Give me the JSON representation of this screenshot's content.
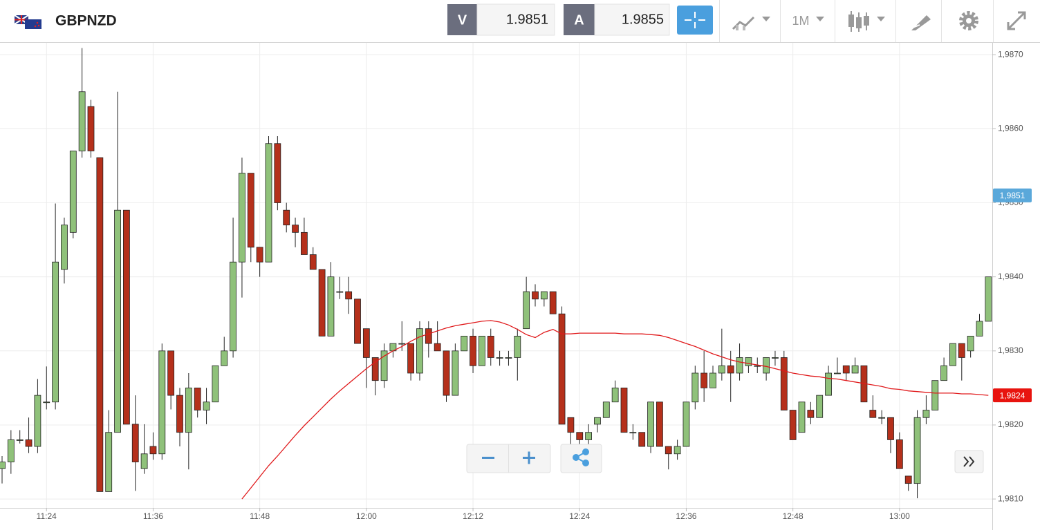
{
  "toolbar": {
    "symbol": "GBPNZD",
    "bid_label": "V",
    "bid": 1.9851,
    "ask_label": "A",
    "ask": 1.9855,
    "timeframe": "1M"
  },
  "chart_data": {
    "type": "candlestick",
    "categories": [
      null,
      null,
      null,
      null,
      null,
      "11:24",
      null,
      null,
      null,
      null,
      null,
      null,
      null,
      null,
      null,
      null,
      null,
      "11:36",
      null,
      null,
      null,
      null,
      null,
      null,
      null,
      null,
      null,
      null,
      null,
      "11:48",
      null,
      null,
      null,
      null,
      null,
      null,
      null,
      null,
      null,
      null,
      null,
      "12:00",
      null,
      null,
      null,
      null,
      null,
      null,
      null,
      null,
      null,
      null,
      null,
      "12:12",
      null,
      null,
      null,
      null,
      null,
      null,
      null,
      null,
      null,
      null,
      null,
      "12:24",
      null,
      null,
      null,
      null,
      null,
      null,
      null,
      null,
      null,
      null,
      null,
      "12:36",
      null,
      null,
      null,
      null,
      null,
      null,
      null,
      null,
      null,
      null,
      null,
      "12:48",
      null,
      null,
      null,
      null,
      null,
      null,
      null,
      null,
      null,
      null,
      null,
      "13:00",
      null,
      null,
      null,
      null,
      null,
      null,
      null,
      null,
      null,
      null
    ],
    "open": [
      1.98141,
      1.9815,
      1.98179,
      1.9818,
      1.98171,
      1.98231,
      1.98231,
      1.9841,
      1.9846,
      1.9857,
      1.9863,
      1.98561,
      1.9811,
      1.9819,
      1.9849,
      1.98201,
      1.98141,
      1.98171,
      1.98161,
      1.983,
      1.9824,
      1.9819,
      1.9825,
      1.9822,
      1.98231,
      1.9828,
      1.983,
      1.9842,
      1.9854,
      1.9844,
      1.9842,
      1.9858,
      1.9849,
      1.9847,
      1.9846,
      1.9843,
      1.9841,
      1.9832,
      1.9838,
      1.9838,
      1.9837,
      1.9833,
      1.98291,
      1.9826,
      1.983,
      1.9831,
      1.9831,
      1.9827,
      1.9833,
      1.9831,
      1.983,
      1.9824,
      1.983,
      1.9832,
      1.9828,
      1.9832,
      1.98291,
      1.98291,
      1.98291,
      1.9833,
      1.9838,
      1.9837,
      1.9838,
      1.9835,
      1.9821,
      1.9819,
      1.9818,
      1.98201,
      1.9821,
      1.98231,
      1.9825,
      1.9819,
      1.9819,
      1.98171,
      1.98231,
      1.98171,
      1.98161,
      1.98171,
      1.98231,
      1.9827,
      1.9825,
      1.9827,
      1.9828,
      1.9827,
      1.9828,
      1.9828,
      1.9827,
      1.98291,
      1.98291,
      1.9822,
      1.9819,
      1.9822,
      1.9821,
      1.9824,
      1.9827,
      1.9828,
      1.9827,
      1.9828,
      1.9822,
      1.9821,
      1.9821,
      1.9818,
      1.98131,
      1.98121,
      1.9821,
      1.9822,
      1.9826,
      1.9828,
      1.9831,
      1.983,
      1.9832,
      1.9834
    ],
    "close": [
      1.9815,
      1.9818,
      1.9818,
      1.98171,
      1.9824,
      1.98231,
      1.9842,
      1.9847,
      1.9857,
      1.9865,
      1.9857,
      1.9811,
      1.9819,
      1.9849,
      1.98201,
      1.9815,
      1.98161,
      1.98161,
      1.983,
      1.9824,
      1.9819,
      1.9825,
      1.9822,
      1.98231,
      1.9828,
      1.983,
      1.9842,
      1.9854,
      1.9844,
      1.9842,
      1.9858,
      1.985,
      1.9847,
      1.9846,
      1.9843,
      1.9841,
      1.9832,
      1.984,
      1.9838,
      1.9837,
      1.9831,
      1.98291,
      1.9826,
      1.983,
      1.9831,
      1.9831,
      1.9827,
      1.9833,
      1.9831,
      1.983,
      1.9824,
      1.983,
      1.9832,
      1.9828,
      1.9832,
      1.98291,
      1.98291,
      1.98291,
      1.9832,
      1.9838,
      1.9837,
      1.9838,
      1.9835,
      1.98201,
      1.9819,
      1.9818,
      1.9819,
      1.9821,
      1.98231,
      1.9825,
      1.9819,
      1.9819,
      1.98171,
      1.98231,
      1.98171,
      1.98161,
      1.98171,
      1.98231,
      1.9827,
      1.9825,
      1.9827,
      1.9828,
      1.9827,
      1.98291,
      1.98291,
      1.9828,
      1.98291,
      1.98291,
      1.9822,
      1.9818,
      1.98231,
      1.9821,
      1.9824,
      1.9827,
      1.9827,
      1.9827,
      1.9828,
      1.98231,
      1.9821,
      1.9821,
      1.9818,
      1.98141,
      1.98121,
      1.9821,
      1.9822,
      1.9826,
      1.9828,
      1.9831,
      1.98291,
      1.9832,
      1.9834,
      1.984
    ],
    "high": [
      1.98158,
      1.98193,
      1.98193,
      1.9821,
      1.98262,
      1.98279,
      1.98499,
      1.9848,
      1.9857,
      1.98709,
      1.98639,
      1.98561,
      1.9822,
      1.9865,
      1.9849,
      1.9824,
      1.98201,
      1.9819,
      1.9831,
      1.983,
      1.9825,
      1.9827,
      1.9825,
      1.9825,
      1.9828,
      1.98319,
      1.9848,
      1.98561,
      1.9854,
      1.9844,
      1.9859,
      1.9859,
      1.985,
      1.9848,
      1.9848,
      1.9844,
      1.9841,
      1.9842,
      1.984,
      1.984,
      1.9837,
      1.9833,
      1.98291,
      1.9831,
      1.9831,
      1.9834,
      1.9831,
      1.9834,
      1.9834,
      1.9834,
      1.983,
      1.9831,
      1.9832,
      1.9833,
      1.9832,
      1.9833,
      1.983,
      1.983,
      1.9833,
      1.984,
      1.9839,
      1.9838,
      1.9838,
      1.9836,
      1.9821,
      1.9819,
      1.98201,
      1.9821,
      1.98231,
      1.9826,
      1.9825,
      1.98201,
      1.9819,
      1.98231,
      1.98231,
      1.98171,
      1.9818,
      1.98231,
      1.9828,
      1.983,
      1.9828,
      1.9833,
      1.983,
      1.9831,
      1.98291,
      1.98291,
      1.98291,
      1.983,
      1.983,
      1.9822,
      1.98231,
      1.98231,
      1.9824,
      1.9828,
      1.98291,
      1.9828,
      1.98291,
      1.9828,
      1.9824,
      1.9822,
      1.9821,
      1.9819,
      1.98131,
      1.9822,
      1.9824,
      1.9826,
      1.98291,
      1.9831,
      1.9831,
      1.9832,
      1.9835,
      1.984
    ],
    "low": [
      1.98121,
      1.98134,
      1.98175,
      1.98162,
      1.98162,
      1.98221,
      1.98221,
      1.98391,
      1.98452,
      1.98561,
      1.98561,
      1.9811,
      1.9811,
      1.9819,
      1.98201,
      1.98111,
      1.98134,
      1.98153,
      1.98153,
      1.98221,
      1.98171,
      1.9814,
      1.9821,
      1.98201,
      1.98231,
      1.9828,
      1.98291,
      1.98372,
      1.9842,
      1.984,
      1.9842,
      1.9849,
      1.9846,
      1.9844,
      1.9843,
      1.9841,
      1.9832,
      1.9832,
      1.9837,
      1.9835,
      1.9831,
      1.9825,
      1.9824,
      1.9825,
      1.98291,
      1.983,
      1.9826,
      1.9826,
      1.98291,
      1.983,
      1.98231,
      1.9824,
      1.983,
      1.9827,
      1.9828,
      1.9828,
      1.9828,
      1.9828,
      1.9826,
      1.9833,
      1.9836,
      1.9836,
      1.9835,
      1.98201,
      1.98171,
      1.98171,
      1.98171,
      1.9819,
      1.9821,
      1.98231,
      1.9819,
      1.9818,
      1.98171,
      1.98162,
      1.98171,
      1.9814,
      1.98153,
      1.98171,
      1.98221,
      1.98231,
      1.9825,
      1.9826,
      1.98231,
      1.9826,
      1.9827,
      1.9827,
      1.9826,
      1.9828,
      1.9822,
      1.9818,
      1.9819,
      1.98201,
      1.9821,
      1.9824,
      1.9827,
      1.9826,
      1.9827,
      1.98231,
      1.9821,
      1.98201,
      1.98162,
      1.98141,
      1.98111,
      1.98101,
      1.98201,
      1.9822,
      1.9826,
      1.9828,
      1.9826,
      1.98291,
      1.9832,
      1.9834
    ],
    "up_color": "#8fc17a",
    "down_color": "#b5301b",
    "moving_average": {
      "color": "#e0191b",
      "values": [
        null,
        null,
        null,
        null,
        null,
        null,
        null,
        null,
        null,
        null,
        null,
        null,
        null,
        null,
        null,
        null,
        null,
        null,
        null,
        null,
        null,
        null,
        null,
        null,
        null,
        null,
        null,
        1.981,
        1.98115,
        1.9813,
        1.98145,
        1.98158,
        1.98172,
        1.98186,
        1.98199,
        1.98211,
        1.98223,
        1.98235,
        1.98246,
        1.98256,
        1.98266,
        1.98276,
        1.98285,
        1.98293,
        1.983,
        1.98306,
        1.98313,
        1.98319,
        1.98323,
        1.98327,
        1.98331,
        1.98334,
        1.98336,
        1.98338,
        1.9834,
        1.98341,
        1.98339,
        1.98335,
        1.98329,
        1.98322,
        1.98318,
        1.98325,
        1.98329,
        1.98323,
        1.98323,
        1.98324,
        1.98324,
        1.98324,
        1.98324,
        1.98324,
        1.98323,
        1.98323,
        1.98323,
        1.98322,
        1.98321,
        1.98318,
        1.98314,
        1.9831,
        1.98306,
        1.98301,
        1.98296,
        1.98292,
        1.98288,
        1.98285,
        1.98283,
        1.98281,
        1.98279,
        1.98276,
        1.98273,
        1.9827,
        1.98268,
        1.98266,
        1.98265,
        1.98263,
        1.98262,
        1.9826,
        1.98258,
        1.98256,
        1.98254,
        1.98252,
        1.98249,
        1.98248,
        1.98246,
        1.98245,
        1.98244,
        1.98243,
        1.98243,
        1.98243,
        1.98242,
        1.98242,
        1.98241,
        1.9824
      ]
    },
    "ylim": [
      1.98088,
      1.98716
    ],
    "yticks": [
      {
        "value": 1.981,
        "label": "1,9810"
      },
      {
        "value": 1.982,
        "label": "1,9820"
      },
      {
        "value": 1.983,
        "label": "1,9830"
      },
      {
        "value": 1.984,
        "label": "1,9840"
      },
      {
        "value": 1.985,
        "label": "1,9850"
      },
      {
        "value": 1.986,
        "label": "1,9860"
      },
      {
        "value": 1.987,
        "label": "1,9870"
      }
    ],
    "grid": true,
    "price_markers": [
      {
        "value": 1.9851,
        "label": "1,9851",
        "color": "#5aa8da"
      },
      {
        "value": 1.9824,
        "label": "1,9824",
        "color": "#e8140f"
      }
    ]
  }
}
